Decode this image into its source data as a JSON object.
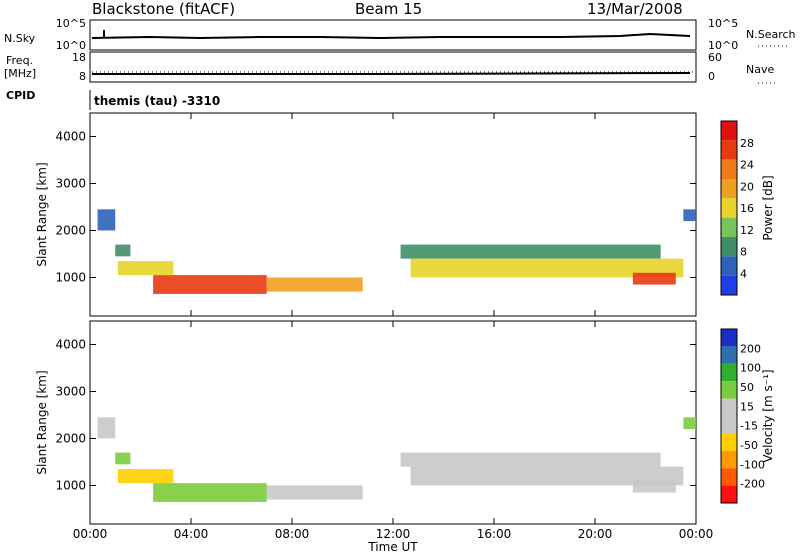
{
  "header": {
    "site": "Blackstone (fitACF)",
    "beam": "Beam 15",
    "date": "13/Mar/2008"
  },
  "status_panel": {
    "left_top": "N.Sky",
    "left_mid_line1": "Freq.",
    "left_mid_line2": "[MHz]",
    "left_bottom": "CPID",
    "sky_ticks": [
      "10^5",
      "10^0"
    ],
    "freq_ticks": [
      "18",
      "8"
    ],
    "search_ticks": [
      "10^5",
      "10^0"
    ],
    "nave_ticks": [
      "60",
      "0"
    ],
    "right_top": "N.Search",
    "right_mid": "Nave",
    "cpid_text": "themis (tau) -3310"
  },
  "x_axis": {
    "label": "Time UT",
    "ticks": [
      "00:00",
      "04:00",
      "08:00",
      "12:00",
      "16:00",
      "20:00",
      "00:00"
    ]
  },
  "colors": {
    "power_scale": [
      "#1f3fe6",
      "#2e62b8",
      "#3f8f66",
      "#7ac25a",
      "#e8d42a",
      "#f0a020",
      "#f07a1a",
      "#e83a10",
      "#e01010"
    ],
    "velocity_scale": [
      "#ff1010",
      "#ff5a00",
      "#ff9a00",
      "#ffd000",
      "#c8c8c8",
      "#c8c8c8",
      "#7acc3c",
      "#2fb02f",
      "#2f6faf",
      "#1a2fbf"
    ]
  },
  "chart_data": [
    {
      "type": "heatmap",
      "title": "Power",
      "xlabel": "Time UT",
      "ylabel": "Slant Range [km]",
      "ylim": [
        180,
        4500
      ],
      "y_ticks": [
        "4000",
        "3000",
        "2000",
        "1000"
      ],
      "colorbar": {
        "label": "Power [dB]",
        "ticks": [
          "28",
          "24",
          "20",
          "16",
          "12",
          "8",
          "4"
        ],
        "range": [
          0,
          30
        ]
      },
      "segments": [
        {
          "t_start": 0.3,
          "t_end": 1.0,
          "r_low": 2000,
          "r_high": 2450,
          "value": 6
        },
        {
          "t_start": 1.0,
          "t_end": 1.6,
          "r_low": 1450,
          "r_high": 1700,
          "value": 8
        },
        {
          "t_start": 1.1,
          "t_end": 3.3,
          "r_low": 1050,
          "r_high": 1350,
          "value": 14
        },
        {
          "t_start": 2.5,
          "t_end": 7.0,
          "r_low": 650,
          "r_high": 1050,
          "value": 24
        },
        {
          "t_start": 7.0,
          "t_end": 10.8,
          "r_low": 700,
          "r_high": 1000,
          "value": 18
        },
        {
          "t_start": 12.3,
          "t_end": 22.6,
          "r_low": 1400,
          "r_high": 1700,
          "value": 8
        },
        {
          "t_start": 12.7,
          "t_end": 23.5,
          "r_low": 1000,
          "r_high": 1400,
          "value": 16
        },
        {
          "t_start": 21.5,
          "t_end": 23.2,
          "r_low": 850,
          "r_high": 1100,
          "value": 26
        },
        {
          "t_start": 23.5,
          "t_end": 24.0,
          "r_low": 2200,
          "r_high": 2450,
          "value": 5
        }
      ]
    },
    {
      "type": "heatmap",
      "title": "Velocity",
      "xlabel": "Time UT",
      "ylabel": "Slant Range [km]",
      "ylim": [
        180,
        4500
      ],
      "y_ticks": [
        "4000",
        "3000",
        "2000",
        "1000"
      ],
      "colorbar": {
        "label": "Velocity [m s⁻¹]",
        "ticks": [
          "200",
          "100",
          "50",
          "15",
          "-15",
          "-50",
          "-100",
          "-200"
        ],
        "range": [
          -250,
          250
        ]
      },
      "segments": [
        {
          "t_start": 0.3,
          "t_end": 1.0,
          "r_low": 2000,
          "r_high": 2450,
          "value": 0
        },
        {
          "t_start": 1.0,
          "t_end": 1.6,
          "r_low": 1450,
          "r_high": 1700,
          "value": 30
        },
        {
          "t_start": 1.1,
          "t_end": 3.3,
          "r_low": 1050,
          "r_high": 1350,
          "value": -40
        },
        {
          "t_start": 2.5,
          "t_end": 7.0,
          "r_low": 650,
          "r_high": 1050,
          "value": 35
        },
        {
          "t_start": 7.0,
          "t_end": 10.8,
          "r_low": 700,
          "r_high": 1000,
          "value": 0
        },
        {
          "t_start": 12.3,
          "t_end": 22.6,
          "r_low": 1400,
          "r_high": 1700,
          "value": 0
        },
        {
          "t_start": 12.7,
          "t_end": 23.5,
          "r_low": 1000,
          "r_high": 1400,
          "value": 0
        },
        {
          "t_start": 21.5,
          "t_end": 23.2,
          "r_low": 850,
          "r_high": 1100,
          "value": 0
        },
        {
          "t_start": 23.5,
          "t_end": 24.0,
          "r_low": 2200,
          "r_high": 2450,
          "value": 40
        }
      ]
    }
  ]
}
